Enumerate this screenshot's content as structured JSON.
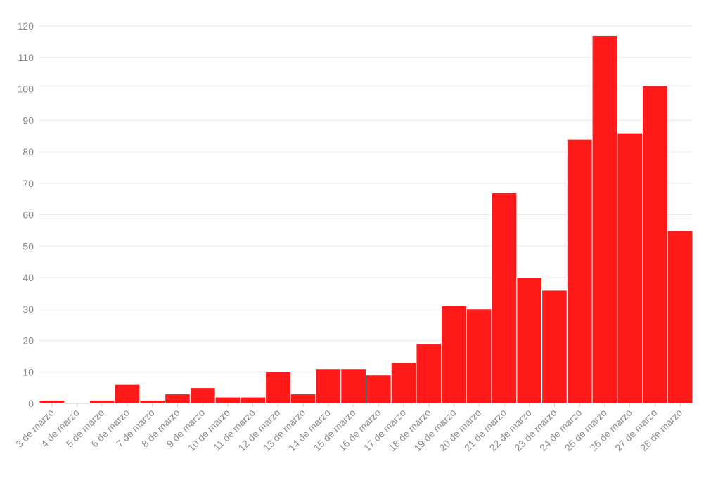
{
  "chart_data": {
    "type": "bar",
    "title": "",
    "xlabel": "",
    "ylabel": "",
    "categories": [
      "3 de marzo",
      "4 de marzo",
      "5 de marzo",
      "6 de marzo",
      "7 de marzo",
      "8 de marzo",
      "9 de marzo",
      "10 de marzo",
      "11 de marzo",
      "12 de marzo",
      "13 de marzo",
      "14 de marzo",
      "15 de marzo",
      "16 de marzo",
      "17 de marzo",
      "18 de marzo",
      "19 de marzo",
      "20 de marzo",
      "21 de marzo",
      "22 de marzo",
      "23 de marzo",
      "24 de marzo",
      "25 de marzo",
      "26 de marzo",
      "27 de marzo",
      "28 de marzo"
    ],
    "values": [
      1,
      0,
      1,
      6,
      1,
      3,
      5,
      2,
      2,
      10,
      3,
      11,
      11,
      9,
      13,
      19,
      31,
      30,
      67,
      40,
      36,
      84,
      117,
      86,
      101,
      55
    ],
    "ylim": [
      0,
      120
    ],
    "yticks": [
      0,
      10,
      20,
      30,
      40,
      50,
      60,
      70,
      80,
      90,
      100,
      110,
      120
    ],
    "grid": true,
    "legend": "none",
    "bar_color": "#ff1a1a"
  }
}
